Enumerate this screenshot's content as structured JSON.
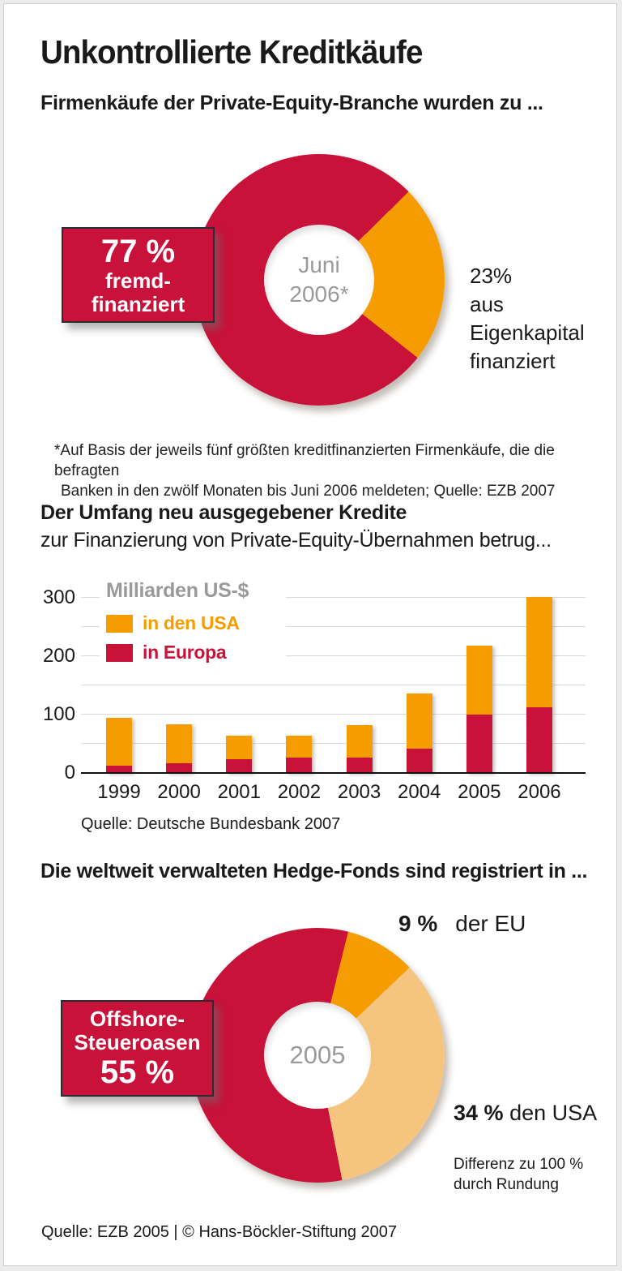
{
  "title": "Unkontrollierte Kreditkäufe",
  "section_pe": {
    "heading": "Firmenkäufe der Private-Equity-Branche wurden zu ...",
    "donut_center": [
      "Juni",
      "2006*"
    ],
    "callout": {
      "value": "77 %",
      "lines": [
        "fremd-",
        "finanziert"
      ]
    },
    "side_label": {
      "value": "23%",
      "lines": [
        "aus",
        "Eigenkapital",
        "finanziert"
      ]
    },
    "footnote": [
      "*Auf Basis der jeweils fünf größten kreditfinanzierten Firmenkäufe, die die befragten",
      "Banken in den zwölf Monaten bis Juni 2006 meldeten; Quelle: EZB 2007"
    ]
  },
  "section_credit": {
    "heading_bold": "Der Umfang neu ausgegebener Kredite",
    "heading_rest": "zur Finanzierung von Private-Equity-Übernahmen betrug..."
  },
  "section_hedge": {
    "heading": "Die weltweit verwalteten Hedge-Fonds sind registriert in ...",
    "donut_center": "2005",
    "callout": {
      "lines": [
        "Offshore-",
        "Steueroasen"
      ],
      "value": "55 %"
    },
    "label_eu": {
      "value": "9 %",
      "text": "der EU"
    },
    "label_usa": {
      "value": "34 %",
      "text": "den USA"
    },
    "note": [
      "Differenz zu 100 %",
      "durch Rundung"
    ]
  },
  "footer_source": "Quelle: EZB 2005 | © Hans-Böckler-Stiftung 2007",
  "colors": {
    "red": "#c8123a",
    "orange": "#f59c00",
    "tan": "#f5c57f",
    "gray_text": "#9a9a9a",
    "grid": "#d8d8d8"
  },
  "chart_data": [
    {
      "type": "pie",
      "title": "Firmenkäufe der Private-Equity-Branche wurden zu ...",
      "center_label": "Juni 2006*",
      "unit": "%",
      "rotation_deg": 45.5,
      "slices": [
        {
          "label": "aus Eigenkapital finanziert",
          "value": 23,
          "color": "#f59c00"
        },
        {
          "label": "fremdfinanziert",
          "value": 77,
          "color": "#c8123a"
        }
      ],
      "footnote": "*Auf Basis der jeweils fünf größten kreditfinanzierten Firmenkäufe, die die befragten Banken in den zwölf Monaten bis Juni 2006 meldeten; Quelle: EZB 2007"
    },
    {
      "type": "bar",
      "stacked": true,
      "title": "Der Umfang neu ausgegebener Kredite zur Finanzierung von Private-Equity-Übernahmen betrug...",
      "unit_label": "Milliarden US-$",
      "categories": [
        "1999",
        "2000",
        "2001",
        "2002",
        "2003",
        "2004",
        "2005",
        "2006"
      ],
      "series": [
        {
          "name": "in Europa",
          "color": "#c8123a",
          "values": [
            13,
            16,
            23,
            26,
            27,
            41,
            100,
            112
          ]
        },
        {
          "name": "in den USA",
          "color": "#f59c00",
          "values": [
            81,
            67,
            41,
            38,
            55,
            95,
            118,
            190
          ]
        }
      ],
      "ylim": [
        0,
        300
      ],
      "yticks": [
        0,
        100,
        200,
        300
      ],
      "gridlines_every": 50,
      "grid": true,
      "legend_position": "top-left",
      "source": "Quelle: Deutsche Bundesbank 2007"
    },
    {
      "type": "pie",
      "title": "Die weltweit verwalteten Hedge-Fonds sind registriert in ...",
      "center_label": "2005",
      "unit": "%",
      "rotation_deg": 14,
      "slices": [
        {
          "label": "der EU",
          "value": 9,
          "color": "#f59c00"
        },
        {
          "label": "den USA",
          "value": 34,
          "color": "#f5c57f"
        },
        {
          "label": "Offshore-Steueroasen",
          "value": 55,
          "color": "#c8123a"
        }
      ],
      "note": "Differenz zu 100 % durch Rundung",
      "source": "Quelle: EZB 2005 | © Hans-Böckler-Stiftung 2007"
    }
  ]
}
